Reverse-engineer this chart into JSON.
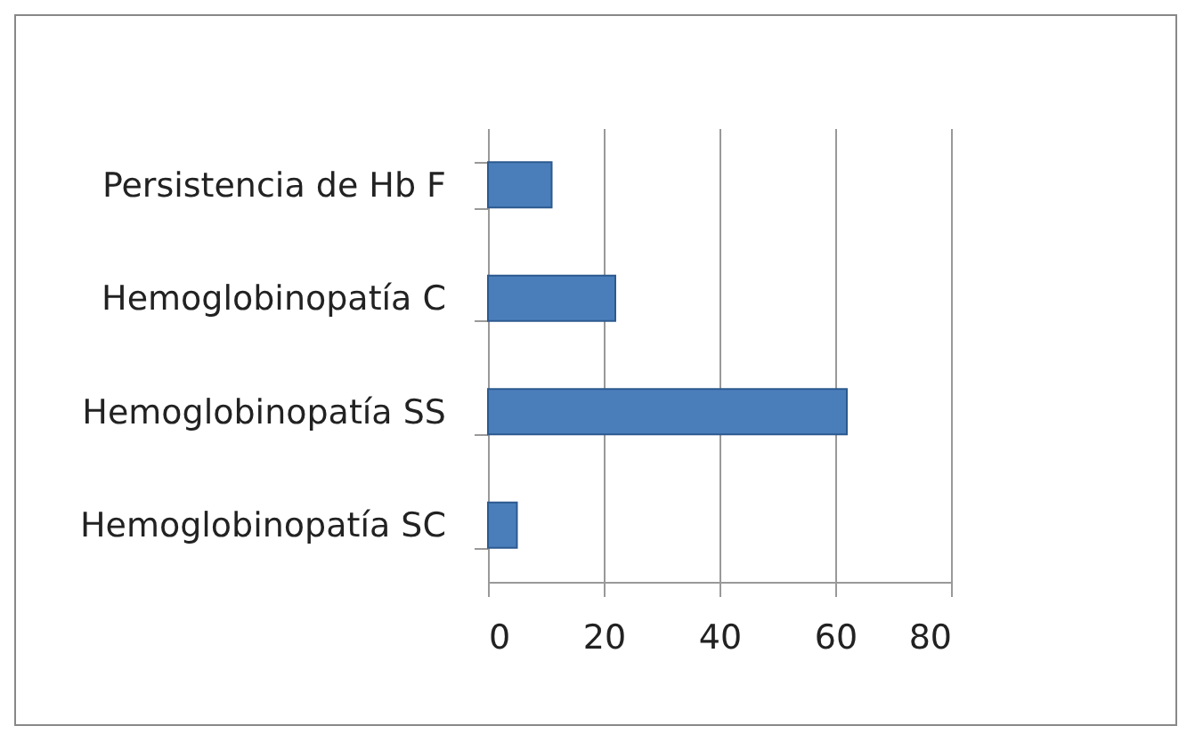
{
  "chart_data": {
    "type": "bar",
    "orientation": "horizontal",
    "categories": [
      "Persistencia de Hb F",
      "Hemoglobinopatía C",
      "Hemoglobinopatía SS",
      "Hemoglobinopatía SC"
    ],
    "values": [
      11,
      22,
      62,
      5
    ],
    "color": "#4a7ebb",
    "xlim": [
      0,
      80
    ],
    "xticks": [
      0,
      20,
      40,
      60,
      80
    ],
    "grid": "x"
  }
}
